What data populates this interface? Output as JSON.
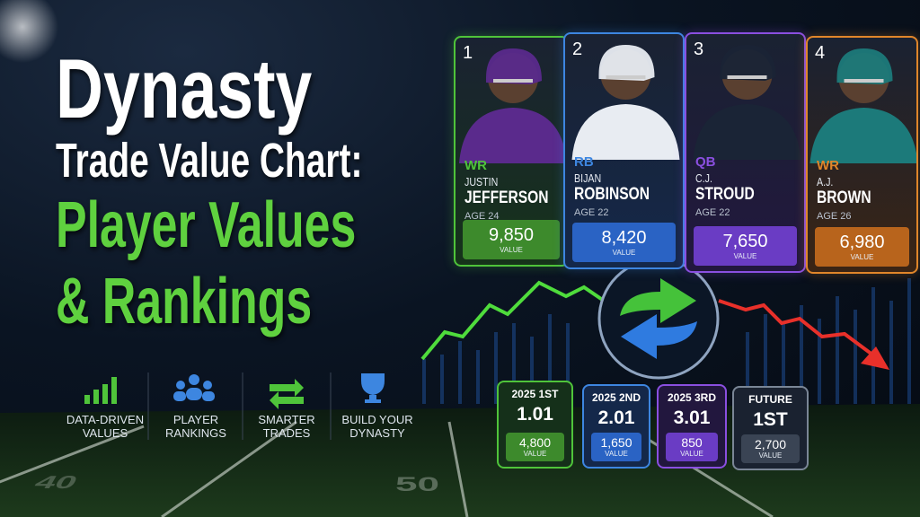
{
  "title": {
    "line1": "Dynasty",
    "line2": "Trade Value Chart:",
    "line3": "Player Values",
    "line4": "& Rankings"
  },
  "features": [
    {
      "lines": [
        "DATA-DRIVEN",
        "VALUES"
      ]
    },
    {
      "lines": [
        "PLAYER",
        "RANKINGS"
      ]
    },
    {
      "lines": [
        "SMARTER",
        "TRADES"
      ]
    },
    {
      "lines": [
        "BUILD YOUR",
        "DYNASTY"
      ]
    }
  ],
  "players": [
    {
      "rank": 1,
      "position": "WR",
      "first": "JUSTIN",
      "last": "JEFFERSON",
      "age": "AGE 24",
      "value": "9,850",
      "value_caption": "VALUE"
    },
    {
      "rank": 2,
      "position": "RB",
      "first": "BIJAN",
      "last": "ROBINSON",
      "age": "AGE 22",
      "value": "8,420",
      "value_caption": "VALUE"
    },
    {
      "rank": 3,
      "position": "QB",
      "first": "C.J.",
      "last": "STROUD",
      "age": "AGE 22",
      "value": "7,650",
      "value_caption": "VALUE"
    },
    {
      "rank": 4,
      "position": "WR",
      "first": "A.J.",
      "last": "BROWN",
      "age": "AGE 26",
      "value": "6,980",
      "value_caption": "VALUE"
    }
  ],
  "picks": [
    {
      "label": "2025 1ST",
      "pick": "1.01",
      "value": "4,800",
      "value_caption": "VALUE"
    },
    {
      "label": "2025 2ND",
      "pick": "2.01",
      "value": "1,650",
      "value_caption": "VALUE"
    },
    {
      "label": "2025 3RD",
      "pick": "3.01",
      "value": "850",
      "value_caption": "VALUE"
    },
    {
      "label": "FUTURE",
      "pick": "1ST",
      "value": "2,700",
      "value_caption": "VALUE"
    }
  ],
  "field_numbers": [
    "40",
    "50"
  ]
}
